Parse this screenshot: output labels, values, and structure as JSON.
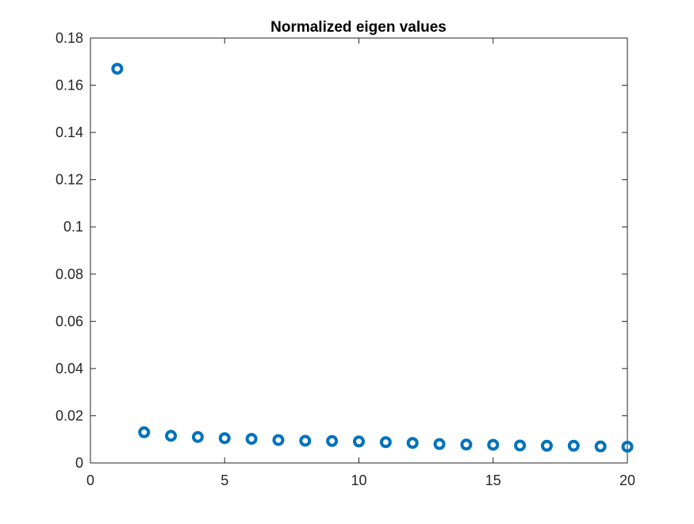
{
  "chart_data": {
    "type": "scatter",
    "title": "Normalized eigen values",
    "xlabel": "",
    "ylabel": "",
    "xlim": [
      0,
      20
    ],
    "ylim": [
      0,
      0.18
    ],
    "xticks": [
      0,
      5,
      10,
      15,
      20
    ],
    "xtick_labels": [
      "0",
      "5",
      "10",
      "15",
      "20"
    ],
    "yticks": [
      0,
      0.02,
      0.04,
      0.06,
      0.08,
      0.1,
      0.12,
      0.14,
      0.16,
      0.18
    ],
    "ytick_labels": [
      "0",
      "0.02",
      "0.04",
      "0.06",
      "0.08",
      "0.1",
      "0.12",
      "0.14",
      "0.16",
      "0.18"
    ],
    "grid": false,
    "marker": "circle-open",
    "color": "#0072BD",
    "series": [
      {
        "x": [
          1,
          2,
          3,
          4,
          5,
          6,
          7,
          8,
          9,
          10,
          11,
          12,
          13,
          14,
          15,
          16,
          17,
          18,
          19,
          20
        ],
        "y": [
          0.167,
          0.013,
          0.0115,
          0.011,
          0.0105,
          0.0102,
          0.0097,
          0.0094,
          0.0093,
          0.0091,
          0.0088,
          0.0085,
          0.008,
          0.0078,
          0.0077,
          0.0074,
          0.0073,
          0.0073,
          0.007,
          0.0069
        ]
      }
    ]
  }
}
